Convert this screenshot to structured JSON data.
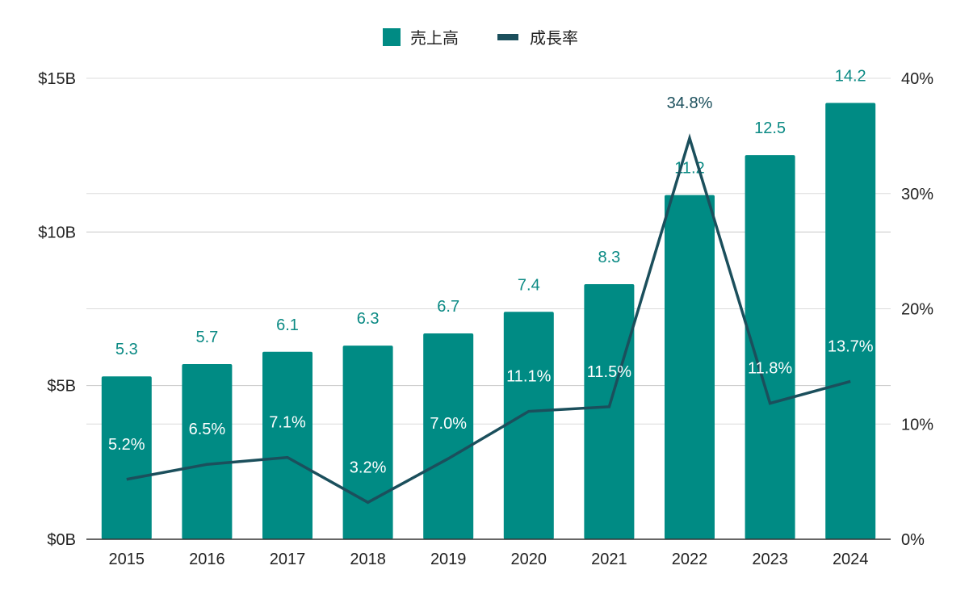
{
  "chart_data": {
    "type": "bar",
    "categories": [
      "2015",
      "2016",
      "2017",
      "2018",
      "2019",
      "2020",
      "2021",
      "2022",
      "2023",
      "2024"
    ],
    "series": [
      {
        "name": "売上高",
        "type": "bar",
        "axis": "left",
        "color": "#008b84",
        "values": [
          5.3,
          5.7,
          6.1,
          6.3,
          6.7,
          7.4,
          8.3,
          11.2,
          12.5,
          14.2
        ],
        "labels": [
          "5.3",
          "5.7",
          "6.1",
          "6.3",
          "6.7",
          "7.4",
          "8.3",
          "11.2",
          "12.5",
          "14.2"
        ]
      },
      {
        "name": "成長率",
        "type": "line",
        "axis": "right",
        "color": "#1b4f5c",
        "values": [
          5.2,
          6.5,
          7.1,
          3.2,
          7.0,
          11.1,
          11.5,
          34.8,
          11.8,
          13.7
        ],
        "labels": [
          "5.2%",
          "6.5%",
          "7.1%",
          "3.2%",
          "7.0%",
          "11.1%",
          "11.5%",
          "34.8%",
          "11.8%",
          "13.7%"
        ]
      }
    ],
    "y_left": {
      "ylim": [
        0,
        15
      ],
      "ticks": [
        0,
        5,
        10,
        15
      ],
      "tick_labels": [
        "$0B",
        "$5B",
        "$10B",
        "$15B"
      ]
    },
    "y_right": {
      "ylim": [
        0,
        40
      ],
      "ticks": [
        0,
        10,
        20,
        30,
        40
      ],
      "tick_labels": [
        "0%",
        "10%",
        "20%",
        "30%",
        "40%"
      ]
    },
    "grid": true,
    "legend": "top-center",
    "title": "",
    "xlabel": "",
    "ylabel": ""
  }
}
